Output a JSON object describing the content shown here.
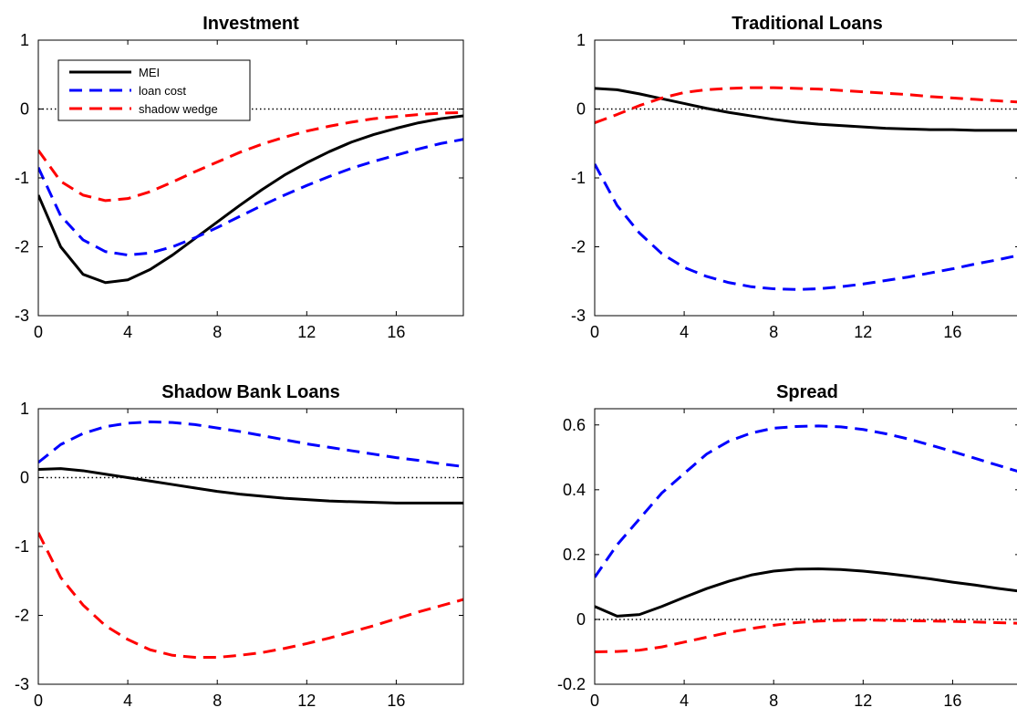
{
  "figure": {
    "legend": {
      "placement": "top-left of first panel",
      "entries": [
        "MEI",
        "loan cost",
        "shadow wedge"
      ]
    },
    "series_styles": [
      {
        "name": "MEI",
        "color": "#000000",
        "dash": "solid"
      },
      {
        "name": "loan cost",
        "color": "#0000ff",
        "dash": "dashed"
      },
      {
        "name": "shadow wedge",
        "color": "#ff0000",
        "dash": "dashed"
      }
    ]
  },
  "chart_data": [
    {
      "type": "line",
      "title": "Investment",
      "xlabel": "",
      "ylabel": "",
      "xlim": [
        0,
        19
      ],
      "ylim": [
        -3,
        1
      ],
      "xticks": [
        0,
        4,
        8,
        12,
        16
      ],
      "yticks": [
        -3,
        -2,
        -1,
        0,
        1
      ],
      "grid": false,
      "zero_line": true,
      "x": [
        0,
        1,
        2,
        3,
        4,
        5,
        6,
        7,
        8,
        9,
        10,
        11,
        12,
        13,
        14,
        15,
        16,
        17,
        18,
        19
      ],
      "series": [
        {
          "name": "MEI",
          "values": [
            -1.25,
            -2.0,
            -2.4,
            -2.52,
            -2.48,
            -2.33,
            -2.12,
            -1.88,
            -1.64,
            -1.4,
            -1.17,
            -0.96,
            -0.78,
            -0.62,
            -0.48,
            -0.37,
            -0.28,
            -0.2,
            -0.14,
            -0.1
          ]
        },
        {
          "name": "loan cost",
          "values": [
            -0.85,
            -1.55,
            -1.9,
            -2.07,
            -2.12,
            -2.09,
            -2.0,
            -1.87,
            -1.72,
            -1.56,
            -1.4,
            -1.25,
            -1.11,
            -0.98,
            -0.86,
            -0.76,
            -0.67,
            -0.58,
            -0.5,
            -0.44
          ]
        },
        {
          "name": "shadow wedge",
          "values": [
            -0.6,
            -1.05,
            -1.25,
            -1.33,
            -1.3,
            -1.2,
            -1.06,
            -0.91,
            -0.77,
            -0.63,
            -0.51,
            -0.41,
            -0.32,
            -0.25,
            -0.19,
            -0.14,
            -0.11,
            -0.08,
            -0.06,
            -0.05
          ]
        }
      ]
    },
    {
      "type": "line",
      "title": "Traditional Loans",
      "xlabel": "",
      "ylabel": "",
      "xlim": [
        0,
        19
      ],
      "ylim": [
        -3,
        1
      ],
      "xticks": [
        0,
        4,
        8,
        12,
        16
      ],
      "yticks": [
        -3,
        -2,
        -1,
        0,
        1
      ],
      "grid": false,
      "zero_line": true,
      "x": [
        0,
        1,
        2,
        3,
        4,
        5,
        6,
        7,
        8,
        9,
        10,
        11,
        12,
        13,
        14,
        15,
        16,
        17,
        18,
        19
      ],
      "series": [
        {
          "name": "MEI",
          "values": [
            0.3,
            0.28,
            0.22,
            0.15,
            0.08,
            0.01,
            -0.05,
            -0.1,
            -0.15,
            -0.19,
            -0.22,
            -0.24,
            -0.26,
            -0.28,
            -0.29,
            -0.3,
            -0.3,
            -0.31,
            -0.31,
            -0.31
          ]
        },
        {
          "name": "loan cost",
          "values": [
            -0.8,
            -1.4,
            -1.8,
            -2.1,
            -2.3,
            -2.43,
            -2.52,
            -2.58,
            -2.61,
            -2.62,
            -2.61,
            -2.58,
            -2.54,
            -2.49,
            -2.44,
            -2.38,
            -2.32,
            -2.25,
            -2.19,
            -2.12
          ]
        },
        {
          "name": "shadow wedge",
          "values": [
            -0.2,
            -0.08,
            0.05,
            0.16,
            0.24,
            0.28,
            0.3,
            0.31,
            0.31,
            0.3,
            0.29,
            0.27,
            0.25,
            0.23,
            0.21,
            0.18,
            0.16,
            0.14,
            0.12,
            0.1
          ]
        }
      ]
    },
    {
      "type": "line",
      "title": "Shadow Bank Loans",
      "xlabel": "",
      "ylabel": "",
      "xlim": [
        0,
        19
      ],
      "ylim": [
        -3,
        1
      ],
      "xticks": [
        0,
        4,
        8,
        12,
        16
      ],
      "yticks": [
        -3,
        -2,
        -1,
        0,
        1
      ],
      "grid": false,
      "zero_line": true,
      "x": [
        0,
        1,
        2,
        3,
        4,
        5,
        6,
        7,
        8,
        9,
        10,
        11,
        12,
        13,
        14,
        15,
        16,
        17,
        18,
        19
      ],
      "series": [
        {
          "name": "MEI",
          "values": [
            0.12,
            0.13,
            0.1,
            0.05,
            0.0,
            -0.05,
            -0.1,
            -0.15,
            -0.2,
            -0.24,
            -0.27,
            -0.3,
            -0.32,
            -0.34,
            -0.35,
            -0.36,
            -0.37,
            -0.37,
            -0.37,
            -0.37
          ]
        },
        {
          "name": "loan cost",
          "values": [
            0.22,
            0.48,
            0.64,
            0.74,
            0.79,
            0.81,
            0.8,
            0.77,
            0.72,
            0.67,
            0.61,
            0.55,
            0.49,
            0.44,
            0.39,
            0.34,
            0.29,
            0.25,
            0.2,
            0.16
          ]
        },
        {
          "name": "shadow wedge",
          "values": [
            -0.8,
            -1.45,
            -1.85,
            -2.15,
            -2.35,
            -2.5,
            -2.58,
            -2.61,
            -2.61,
            -2.58,
            -2.54,
            -2.48,
            -2.41,
            -2.33,
            -2.24,
            -2.15,
            -2.05,
            -1.95,
            -1.86,
            -1.77
          ]
        }
      ]
    },
    {
      "type": "line",
      "title": "Spread",
      "xlabel": "",
      "ylabel": "",
      "xlim": [
        0,
        19
      ],
      "ylim": [
        -0.2,
        0.65
      ],
      "xticks": [
        0,
        4,
        8,
        12,
        16
      ],
      "yticks": [
        -0.2,
        0,
        0.2,
        0.4,
        0.6
      ],
      "grid": false,
      "zero_line": true,
      "x": [
        0,
        1,
        2,
        3,
        4,
        5,
        6,
        7,
        8,
        9,
        10,
        11,
        12,
        13,
        14,
        15,
        16,
        17,
        18,
        19
      ],
      "series": [
        {
          "name": "MEI",
          "values": [
            0.04,
            0.01,
            0.015,
            0.04,
            0.068,
            0.095,
            0.118,
            0.137,
            0.149,
            0.155,
            0.156,
            0.154,
            0.149,
            0.142,
            0.134,
            0.125,
            0.115,
            0.106,
            0.096,
            0.087
          ]
        },
        {
          "name": "loan cost",
          "values": [
            0.13,
            0.23,
            0.31,
            0.39,
            0.45,
            0.51,
            0.55,
            0.575,
            0.59,
            0.595,
            0.597,
            0.594,
            0.586,
            0.573,
            0.557,
            0.538,
            0.518,
            0.497,
            0.476,
            0.455
          ]
        },
        {
          "name": "shadow wedge",
          "values": [
            -0.1,
            -0.099,
            -0.095,
            -0.085,
            -0.07,
            -0.055,
            -0.04,
            -0.028,
            -0.018,
            -0.01,
            -0.005,
            -0.003,
            -0.002,
            -0.003,
            -0.004,
            -0.005,
            -0.006,
            -0.008,
            -0.01,
            -0.012
          ]
        }
      ]
    }
  ]
}
